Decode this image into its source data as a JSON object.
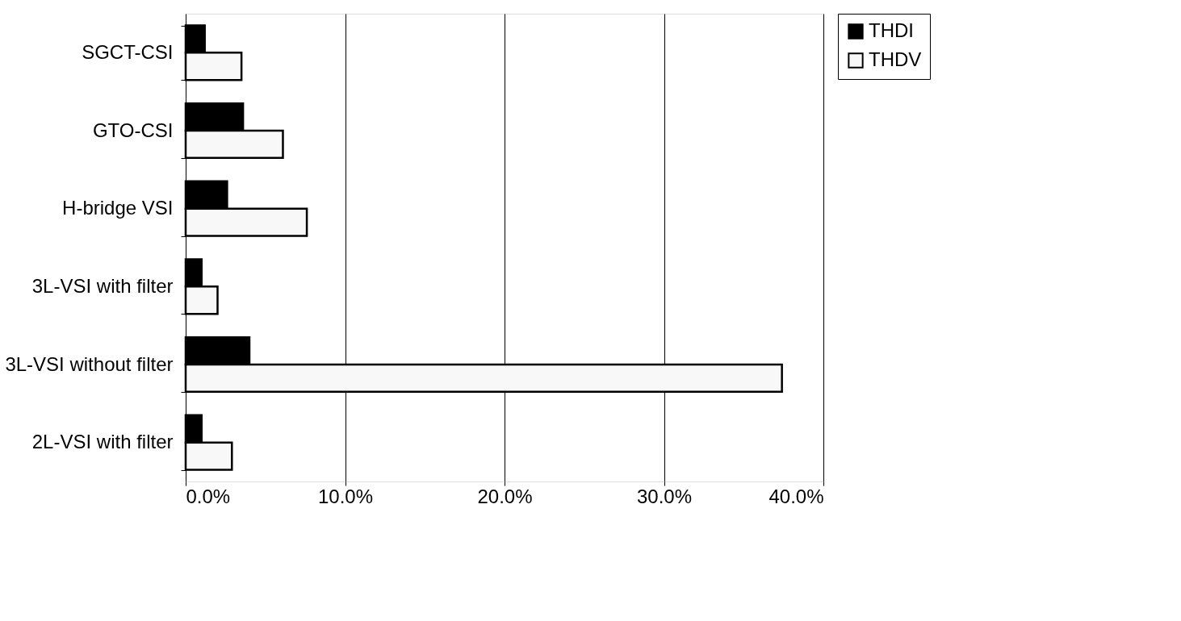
{
  "chart_data": {
    "type": "bar",
    "orientation": "horizontal",
    "categories": [
      "SGCT-CSI",
      "GTO-CSI",
      "H-bridge VSI",
      "3L-VSI with filter",
      "3L-VSI without filter",
      "2L-VSI with filter"
    ],
    "series": [
      {
        "name": "THDI",
        "color": "#000000",
        "values": [
          1.2,
          3.6,
          2.6,
          1.0,
          4.0,
          1.0
        ]
      },
      {
        "name": "THDV",
        "color": "#f8f8f8",
        "values": [
          3.5,
          6.1,
          7.6,
          2.0,
          37.4,
          2.9
        ]
      }
    ],
    "xlim": [
      0,
      40
    ],
    "xticks": [
      {
        "value": 0,
        "label": "0.0%"
      },
      {
        "value": 10,
        "label": "10.0%"
      },
      {
        "value": 20,
        "label": "20.0%"
      },
      {
        "value": 30,
        "label": "30.0%"
      },
      {
        "value": 40,
        "label": "40.0%"
      }
    ],
    "grid": "x",
    "legend": "right"
  }
}
